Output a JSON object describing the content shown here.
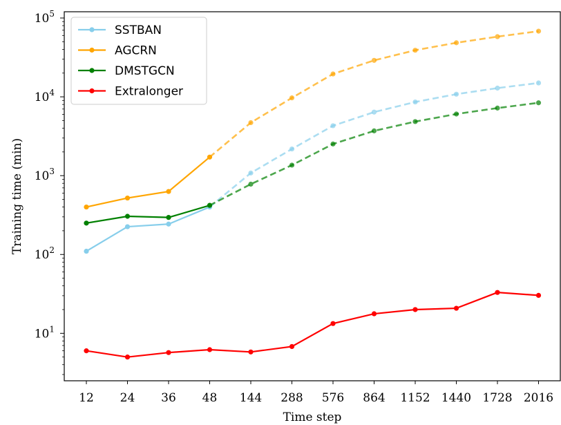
{
  "chart_data": {
    "type": "line",
    "xlabel": "Time step",
    "ylabel": "Training time (min)",
    "yscale": "log",
    "ylim": [
      2.5,
      120000
    ],
    "categories": [
      "12",
      "24",
      "36",
      "48",
      "144",
      "288",
      "576",
      "864",
      "1152",
      "1440",
      "1728",
      "2016"
    ],
    "y_ticks": [
      {
        "value": 10,
        "base": "10",
        "exp": "1"
      },
      {
        "value": 100,
        "base": "10",
        "exp": "2"
      },
      {
        "value": 1000,
        "base": "10",
        "exp": "3"
      },
      {
        "value": 10000,
        "base": "10",
        "exp": "4"
      },
      {
        "value": 100000,
        "base": "10",
        "exp": "5"
      }
    ],
    "legend_position": "top-left",
    "grid": false,
    "series": [
      {
        "name": "SSTBAN",
        "color": "#87ceeb",
        "solid_until_index": 3,
        "values": [
          110,
          225,
          243,
          400,
          1080,
          2180,
          4300,
          6400,
          8600,
          10800,
          12900,
          15000
        ]
      },
      {
        "name": "AGCRN",
        "color": "#ffa500",
        "solid_until_index": 3,
        "values": [
          400,
          520,
          630,
          1720,
          4700,
          9700,
          19500,
          29000,
          39000,
          48500,
          58000,
          68000
        ]
      },
      {
        "name": "DMSTGCN",
        "color": "#008000",
        "solid_until_index": 3,
        "values": [
          250,
          305,
          295,
          420,
          780,
          1360,
          2520,
          3700,
          4850,
          6050,
          7200,
          8400
        ]
      },
      {
        "name": "Extralonger",
        "color": "#ff0000",
        "solid_until_index": 11,
        "values": [
          6.0,
          5.0,
          5.7,
          6.2,
          5.8,
          6.8,
          13.3,
          17.7,
          20.0,
          20.8,
          33.0,
          30.3
        ]
      }
    ]
  }
}
